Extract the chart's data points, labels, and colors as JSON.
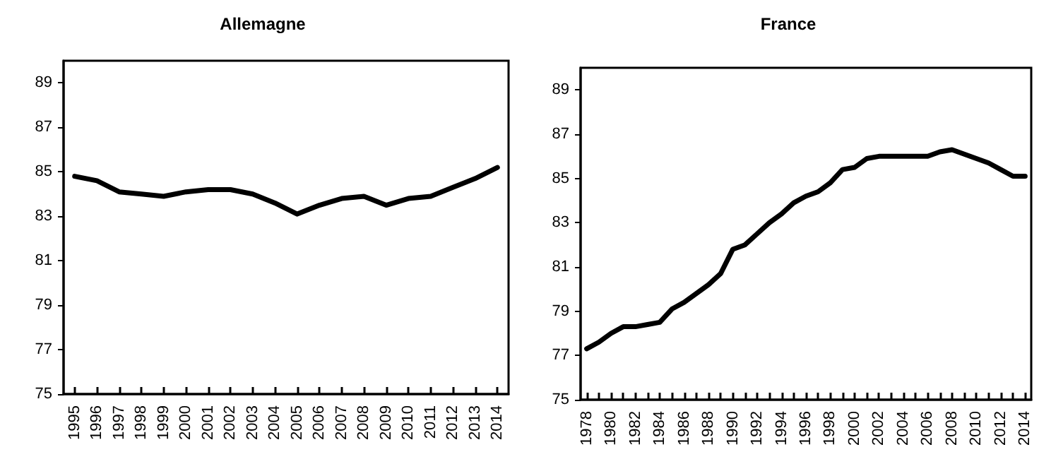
{
  "chart_data": [
    {
      "type": "line",
      "title": "Allemagne",
      "categories": [
        "1995",
        "1996",
        "1997",
        "1998",
        "1999",
        "2000",
        "2001",
        "2002",
        "2003",
        "2004",
        "2005",
        "2006",
        "2007",
        "2008",
        "2009",
        "2010",
        "2011",
        "2012",
        "2013",
        "2014"
      ],
      "series": [
        {
          "color": "#000000",
          "values": [
            84.8,
            84.6,
            84.1,
            84.0,
            83.9,
            84.1,
            84.2,
            84.2,
            84.0,
            83.6,
            83.1,
            83.5,
            83.8,
            83.9,
            83.5,
            83.8,
            83.9,
            84.3,
            84.7,
            85.2
          ]
        }
      ],
      "ylim": [
        75,
        90
      ],
      "yticks": [
        75,
        77,
        79,
        81,
        83,
        85,
        87,
        89
      ],
      "grid": false,
      "marker": "none",
      "line_style": "solid"
    },
    {
      "type": "line",
      "title": "France",
      "categories": [
        "1978",
        null,
        "1980",
        null,
        "1982",
        null,
        "1984",
        null,
        "1986",
        null,
        "1988",
        null,
        "1990",
        null,
        "1992",
        null,
        "1994",
        null,
        "1996",
        null,
        "1998",
        null,
        "2000",
        null,
        "2002",
        null,
        "2004",
        null,
        "2006",
        null,
        "2008",
        null,
        "2010",
        null,
        "2012",
        null,
        "2014"
      ],
      "series": [
        {
          "color": "#000000",
          "values": [
            77.3,
            77.6,
            78.0,
            78.3,
            78.3,
            78.4,
            78.5,
            79.1,
            79.4,
            79.8,
            80.2,
            80.7,
            81.8,
            82.0,
            82.5,
            83.0,
            83.4,
            83.9,
            84.2,
            84.4,
            84.8,
            85.4,
            85.5,
            85.9,
            86.0,
            86.0,
            86.0,
            86.0,
            86.0,
            86.2,
            86.3,
            86.1,
            85.9,
            85.7,
            85.4,
            85.1,
            85.1
          ]
        }
      ],
      "ylim": [
        75,
        90
      ],
      "yticks": [
        75,
        77,
        79,
        81,
        83,
        85,
        87,
        89
      ],
      "grid": false,
      "marker": "none",
      "line_style": "solid"
    }
  ]
}
